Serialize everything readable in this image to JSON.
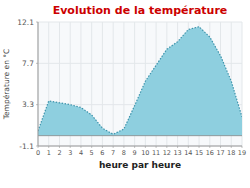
{
  "chart_data": {
    "type": "area",
    "title": "Evolution de la température",
    "xlabel": "heure par heure",
    "ylabel": "Température en °C",
    "x": [
      0,
      1,
      2,
      3,
      4,
      5,
      6,
      7,
      8,
      9,
      10,
      11,
      12,
      13,
      14,
      15,
      16,
      17,
      18,
      19
    ],
    "values": [
      0.5,
      3.7,
      3.5,
      3.3,
      3.0,
      2.2,
      0.8,
      0.15,
      0.7,
      3.2,
      5.8,
      7.5,
      9.2,
      10.0,
      11.3,
      11.6,
      10.5,
      8.5,
      5.8,
      2.0
    ],
    "color": "#8ecfdf",
    "line_style": "dotted",
    "xlim": [
      0,
      19
    ],
    "xticks": [
      0,
      1,
      2,
      3,
      4,
      5,
      6,
      7,
      8,
      9,
      10,
      11,
      12,
      13,
      14,
      15,
      16,
      17,
      18,
      19
    ],
    "ylim": [
      -1.1,
      12.1
    ],
    "yticks": [
      -1.1,
      3.3,
      7.7,
      12.1
    ],
    "grid": true
  }
}
